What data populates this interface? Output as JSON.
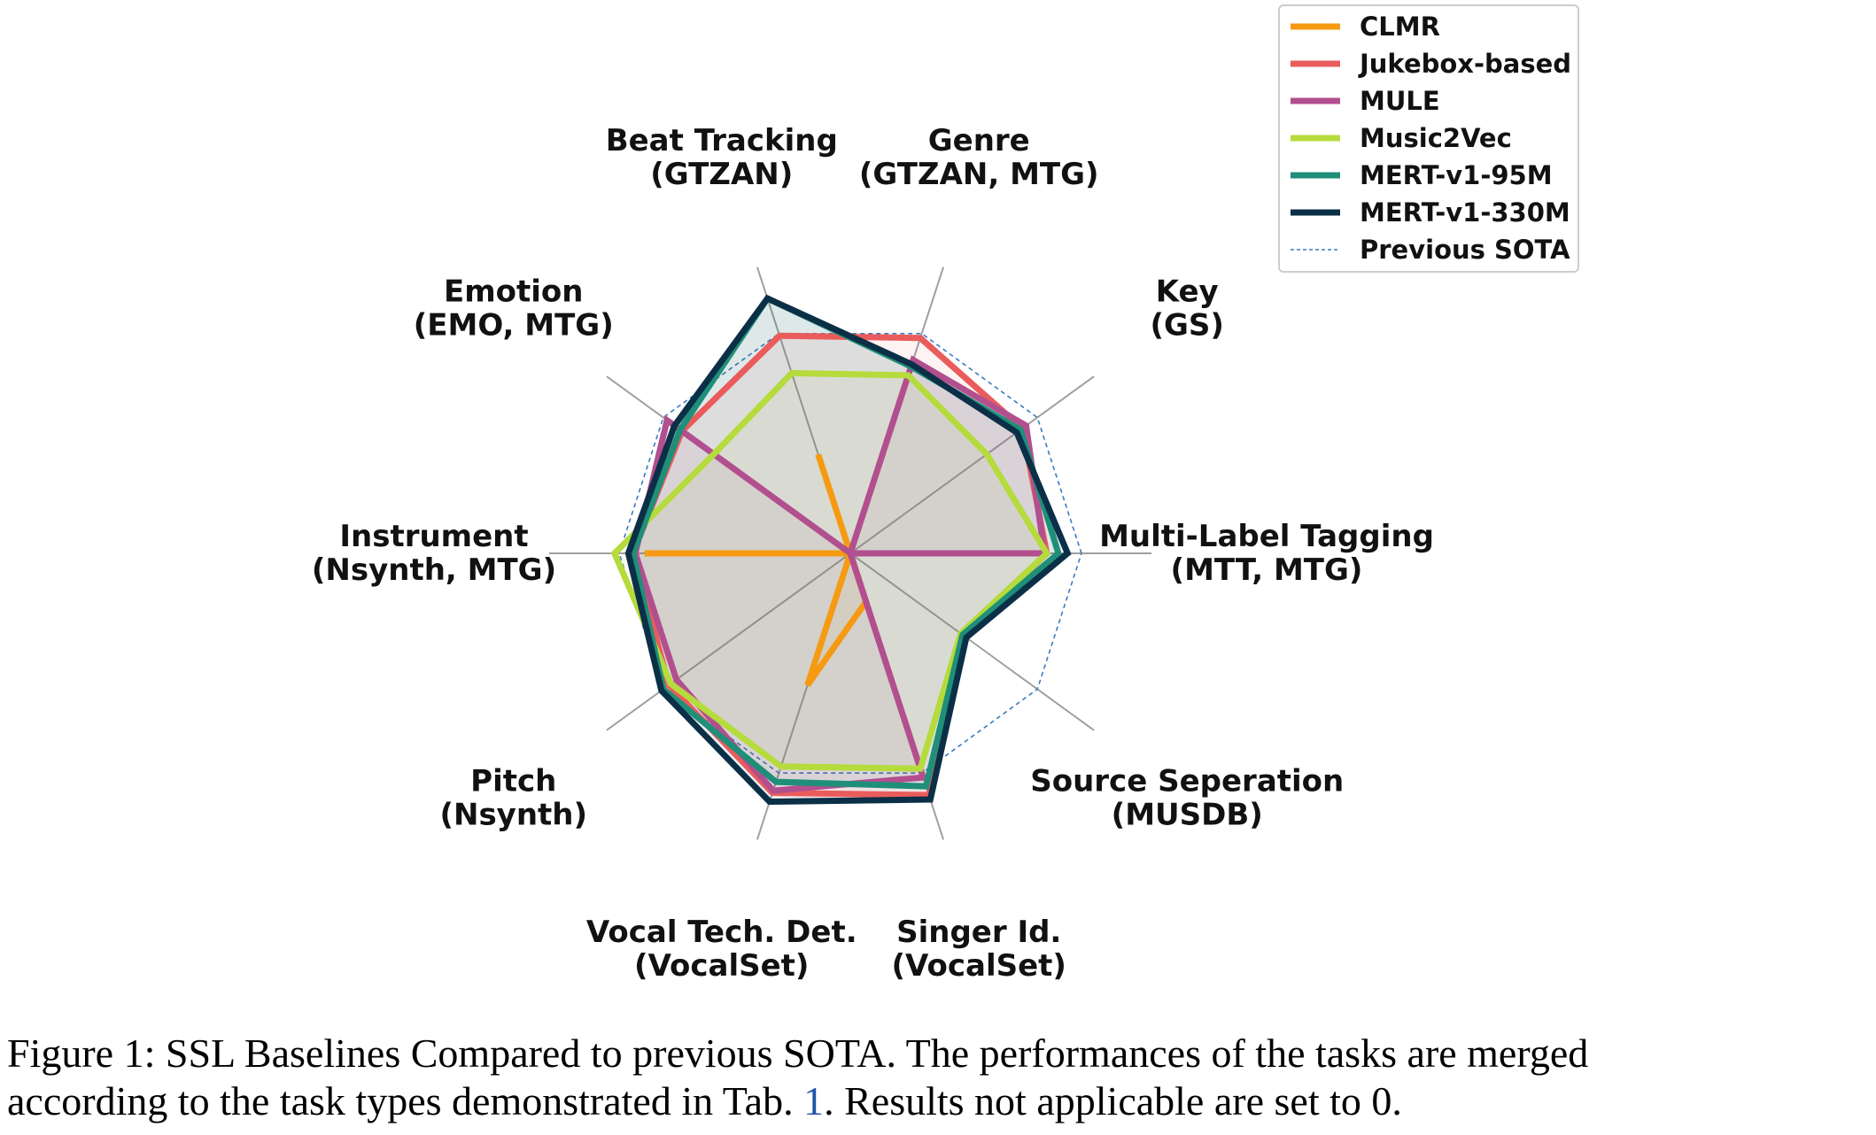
{
  "chart_data": {
    "type": "radar",
    "axes": [
      {
        "name": "Multi-Label Tagging",
        "sub": "(MTT, MTG)"
      },
      {
        "name": "Key",
        "sub": "(GS)"
      },
      {
        "name": "Genre",
        "sub": "(GTZAN, MTG)"
      },
      {
        "name": "Beat Tracking",
        "sub": "(GTZAN)"
      },
      {
        "name": "Emotion",
        "sub": "(EMO, MTG)"
      },
      {
        "name": "Instrument",
        "sub": "(Nsynth, MTG)"
      },
      {
        "name": "Pitch",
        "sub": "(Nsynth)"
      },
      {
        "name": "Vocal Tech. Det.",
        "sub": "(VocalSet)"
      },
      {
        "name": "Singer Id.",
        "sub": "(VocalSet)"
      },
      {
        "name": "Source Seperation",
        "sub": "(MUSDB)"
      }
    ],
    "series": [
      {
        "name": "CLMR",
        "color": "#f59a12",
        "fill": "#f59a12",
        "values": [
          0,
          0,
          0,
          0.45,
          0,
          0.89,
          0,
          0.6,
          0.22,
          0
        ]
      },
      {
        "name": "Jukebox-based",
        "color": "#ea5c5c",
        "fill": "#ea5c5c",
        "values": [
          0.85,
          0.92,
          0.98,
          0.99,
          0.9,
          0.94,
          0.97,
          1.09,
          1.1,
          0.6
        ]
      },
      {
        "name": "MULE",
        "color": "#b24f8f",
        "fill": "#b24f8f",
        "values": [
          0.84,
          0.94,
          0.88,
          0,
          0.98,
          0.93,
          0.93,
          1.08,
          1.02,
          0
        ]
      },
      {
        "name": "Music2Vec",
        "color": "#b5db3c",
        "fill": "#b5db3c",
        "values": [
          0.85,
          0.73,
          0.81,
          0.82,
          0.73,
          1.02,
          0.96,
          0.97,
          0.98,
          0.59
        ]
      },
      {
        "name": "MERT-v1-95M",
        "color": "#1f8f79",
        "fill": "#1f8f79",
        "values": [
          0.9,
          0.91,
          0.85,
          1.16,
          0.91,
          0.94,
          1.0,
          1.04,
          1.06,
          0.6
        ]
      },
      {
        "name": "MERT-v1-330M",
        "color": "#0b2f46",
        "fill": "#0b2f46",
        "values": [
          0.94,
          0.89,
          0.86,
          1.16,
          0.94,
          0.96,
          1.01,
          1.13,
          1.12,
          0.62
        ]
      }
    ],
    "reference": {
      "name": "Previous SOTA",
      "color": "#3a7cc0",
      "values": [
        1,
        1,
        1,
        1,
        1,
        1,
        1,
        1,
        1,
        1
      ]
    },
    "legend": {
      "position": "top-right"
    },
    "range": [
      0,
      1.2
    ]
  },
  "caption": {
    "line1": "Figure 1: SSL Baselines Compared to previous SOTA. The performances of the tasks are merged",
    "line2_before": "according to the task types demonstrated in Tab. ",
    "line2_ref": "1",
    "line2_after": ". Results not applicable are set to 0."
  }
}
